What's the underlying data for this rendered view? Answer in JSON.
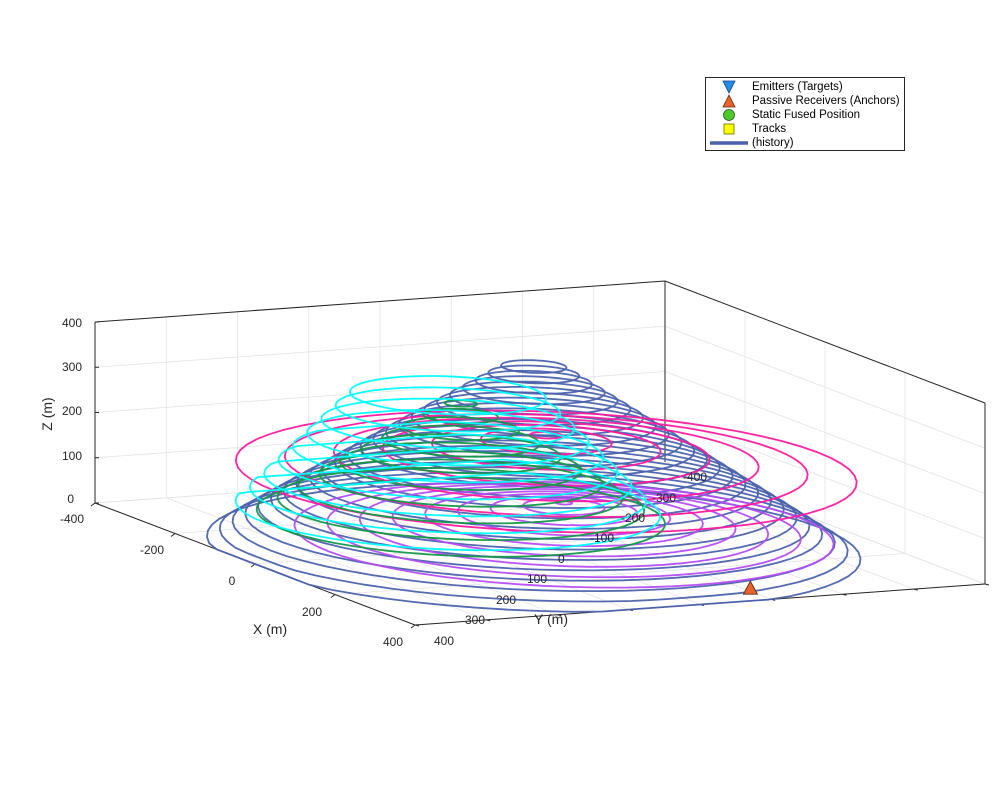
{
  "chart_data": {
    "type": "scatter",
    "title": "",
    "xlabel": "X (m)",
    "ylabel": "Y (m)",
    "zlabel": "Z (m)",
    "xlim": [
      -400,
      400
    ],
    "ylim": [
      -400,
      400
    ],
    "zlim": [
      0,
      400
    ],
    "x_ticks": [
      "-400",
      "-200",
      "0",
      "200",
      "400"
    ],
    "y_ticks": [
      "-400",
      "-300",
      "-200",
      "-100",
      "0",
      "100",
      "200",
      "300",
      "400"
    ],
    "z_ticks": [
      "0",
      "100",
      "200",
      "300",
      "400"
    ],
    "grid": true,
    "legend_placement": "top-right",
    "legend": [
      {
        "name": "Emitters (Targets)",
        "marker": "triangle-down",
        "color": "#1e90e6"
      },
      {
        "name": "Passive Receivers (Anchors)",
        "marker": "triangle-up",
        "color": "#e8632a"
      },
      {
        "name": "Static Fused Position",
        "marker": "circle",
        "color": "#4fc82a"
      },
      {
        "name": "Tracks",
        "marker": "square",
        "color": "#ffff00"
      },
      {
        "name": "(history)",
        "marker": "line",
        "color": "#4b62ad"
      }
    ],
    "anchors": [
      {
        "x": 330,
        "y": 110,
        "z": 0
      }
    ],
    "series": [
      {
        "color": "#4b62ad",
        "center": [
          20,
          -20
        ],
        "radius_range": [
          40,
          400
        ],
        "z_range": [
          0,
          400
        ],
        "rings": 24
      },
      {
        "color": "#b54cf5",
        "center": [
          60,
          0
        ],
        "radius_range": [
          10,
          330
        ],
        "z_range": [
          40,
          110
        ],
        "rings": 9
      },
      {
        "color": "#ff1a9e",
        "center": [
          -20,
          20
        ],
        "radius_range": [
          20,
          380
        ],
        "z_range": [
          150,
          230
        ],
        "rings": 7
      },
      {
        "color": "#139848",
        "center": [
          -180,
          -10
        ],
        "radius_range": [
          20,
          250
        ],
        "z_range": [
          0,
          250
        ],
        "rings": 10
      },
      {
        "color": "#00ffff",
        "center": [
          -230,
          0
        ],
        "radius_range": [
          120,
          260
        ],
        "z_range": [
          0,
          250
        ],
        "rings": 9
      }
    ]
  }
}
